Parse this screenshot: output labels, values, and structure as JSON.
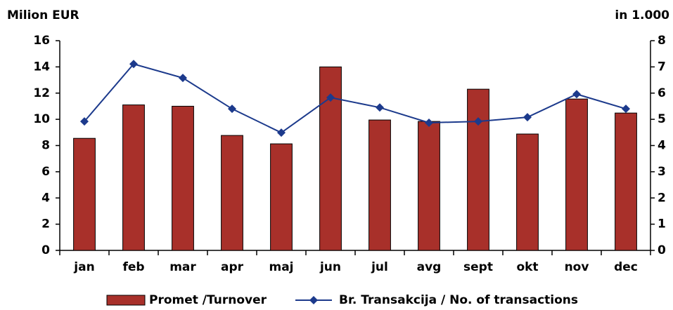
{
  "chart_data": {
    "type": "bar",
    "y_label": "Milion EUR",
    "y2_label": "in 1.000",
    "categories": [
      "jan",
      "feb",
      "mar",
      "apr",
      "maj",
      "jun",
      "jul",
      "avg",
      "sept",
      "okt",
      "nov",
      "dec"
    ],
    "series": [
      {
        "name": "Promet /Turnover",
        "type": "bar",
        "color": "#a8302a",
        "values": [
          8.55,
          11.1,
          11.0,
          8.77,
          8.13,
          14.0,
          9.95,
          9.84,
          12.3,
          8.88,
          11.55,
          10.48
        ]
      },
      {
        "name": "Br. Transakcija / No. of transactions",
        "type": "line",
        "axis": "y2",
        "color": "#1c3a8c",
        "values": [
          4.92,
          7.11,
          6.58,
          5.4,
          4.49,
          5.83,
          5.45,
          4.87,
          4.92,
          5.08,
          5.96,
          5.4
        ]
      }
    ],
    "ylim": [
      0,
      16
    ],
    "yticks": [
      0,
      2,
      4,
      6,
      8,
      10,
      12,
      14,
      16
    ],
    "y2lim": [
      0,
      8
    ],
    "y2ticks": [
      0,
      1,
      2,
      3,
      4,
      5,
      6,
      7,
      8
    ],
    "grid": false,
    "legend": "bottom"
  }
}
